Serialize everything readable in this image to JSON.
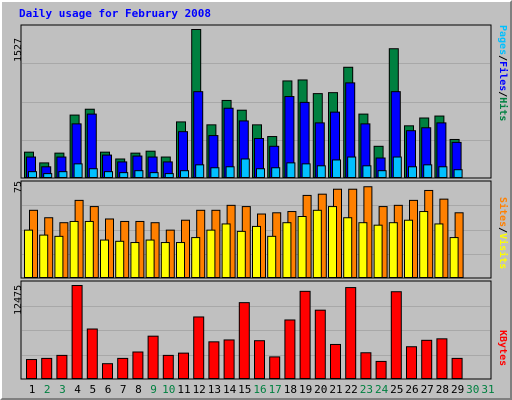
{
  "title": "Daily usage for February 2008",
  "colors": {
    "background": "#c0c0c0",
    "title": "#0000ff",
    "hits": "#008040",
    "files": "#0000ff",
    "pages": "#00c0ff",
    "visits": "#ffff00",
    "sites": "#ff8000",
    "kbytes": "#ff0000",
    "day_weekday": "#000000",
    "day_weekend": "#008040"
  },
  "chart_data": [
    {
      "type": "bar",
      "title": "Daily usage for February 2008",
      "ymax_label": "1527",
      "ylim": [
        0,
        1527
      ],
      "categories": [
        "1",
        "2",
        "3",
        "4",
        "5",
        "6",
        "7",
        "8",
        "9",
        "10",
        "11",
        "12",
        "13",
        "14",
        "15",
        "16",
        "17",
        "18",
        "19",
        "20",
        "21",
        "22",
        "23",
        "24",
        "25",
        "26",
        "27",
        "28",
        "29",
        "30",
        "31"
      ],
      "legend": {
        "pages": "Pages",
        "files": "Files",
        "hits": "Hits",
        "sep": "/"
      },
      "series": [
        {
          "name": "Hits",
          "values": [
            270,
            160,
            260,
            650,
            710,
            270,
            200,
            260,
            280,
            220,
            580,
            1527,
            550,
            800,
            700,
            550,
            430,
            1000,
            1010,
            870,
            880,
            1140,
            660,
            330,
            1330,
            540,
            620,
            640,
            400,
            0,
            0
          ]
        },
        {
          "name": "Files",
          "values": [
            220,
            120,
            220,
            560,
            660,
            240,
            170,
            230,
            220,
            170,
            480,
            890,
            440,
            720,
            590,
            410,
            330,
            840,
            780,
            570,
            680,
            980,
            560,
            210,
            890,
            490,
            520,
            570,
            370,
            0,
            0
          ]
        },
        {
          "name": "Pages",
          "values": [
            70,
            50,
            70,
            150,
            100,
            70,
            60,
            80,
            60,
            50,
            80,
            140,
            110,
            120,
            200,
            100,
            110,
            160,
            150,
            130,
            190,
            220,
            130,
            80,
            220,
            120,
            140,
            120,
            90,
            0,
            0
          ]
        }
      ]
    },
    {
      "type": "bar",
      "ymax_label": "75",
      "ylim": [
        0,
        75
      ],
      "categories": [
        "1",
        "2",
        "3",
        "4",
        "5",
        "6",
        "7",
        "8",
        "9",
        "10",
        "11",
        "12",
        "13",
        "14",
        "15",
        "16",
        "17",
        "18",
        "19",
        "20",
        "21",
        "22",
        "23",
        "24",
        "25",
        "26",
        "27",
        "28",
        "29",
        "30",
        "31"
      ],
      "legend": {
        "sites": "Sites",
        "visits": "Visits",
        "sep": "/"
      },
      "series": [
        {
          "name": "Visits",
          "values": [
            39,
            35,
            34,
            46,
            46,
            31,
            30,
            29,
            31,
            29,
            29,
            33,
            39,
            44,
            38,
            42,
            34,
            45,
            50,
            55,
            58,
            49,
            45,
            43,
            45,
            47,
            54,
            44,
            33,
            0,
            0
          ]
        },
        {
          "name": "Sites",
          "values": [
            55,
            49,
            45,
            63,
            58,
            48,
            46,
            46,
            45,
            39,
            47,
            55,
            55,
            59,
            58,
            52,
            53,
            54,
            67,
            68,
            72,
            72,
            74,
            58,
            59,
            63,
            71,
            64,
            53,
            0,
            0
          ]
        }
      ]
    },
    {
      "type": "bar",
      "ymax_label": "12475",
      "ylim": [
        0,
        12475
      ],
      "categories": [
        "1",
        "2",
        "3",
        "4",
        "5",
        "6",
        "7",
        "8",
        "9",
        "10",
        "11",
        "12",
        "13",
        "14",
        "15",
        "16",
        "17",
        "18",
        "19",
        "20",
        "21",
        "22",
        "23",
        "24",
        "25",
        "26",
        "27",
        "28",
        "29",
        "30",
        "31"
      ],
      "legend": {
        "kbytes": "KBytes"
      },
      "series": [
        {
          "name": "KBytes",
          "values": [
            2650,
            2800,
            3200,
            12475,
            6700,
            2100,
            2800,
            3650,
            5750,
            3200,
            3500,
            8300,
            5000,
            5250,
            10200,
            5150,
            3000,
            7900,
            11700,
            9200,
            4650,
            12200,
            3550,
            2400,
            11650,
            4350,
            5200,
            5400,
            2800,
            0,
            0
          ]
        }
      ]
    }
  ],
  "weekend_days": [
    2,
    3,
    9,
    10,
    16,
    17,
    23,
    24,
    30,
    31
  ]
}
